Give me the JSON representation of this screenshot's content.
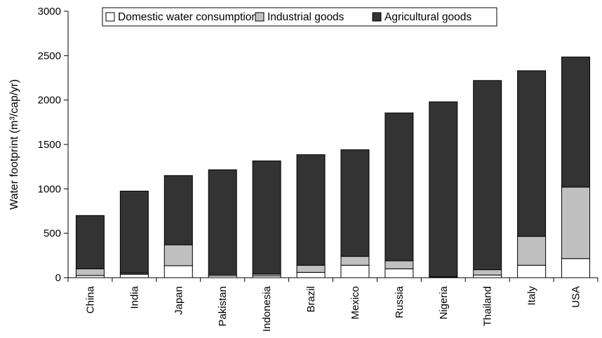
{
  "chart_data": {
    "type": "bar",
    "stacked": true,
    "categories": [
      "China",
      "India",
      "Japan",
      "Pakistan",
      "Indonesia",
      "Brazil",
      "Mexico",
      "Russia",
      "Nigeria",
      "Thailand",
      "Italy",
      "USA"
    ],
    "series": [
      {
        "name": "Domestic water consumption",
        "color": "#ffffff",
        "values": [
          25,
          38,
          135,
          20,
          20,
          60,
          140,
          100,
          5,
          30,
          140,
          215
        ]
      },
      {
        "name": "Industrial goods",
        "color": "#c0c0c0",
        "values": [
          75,
          12,
          235,
          15,
          20,
          80,
          100,
          90,
          5,
          60,
          325,
          805
        ]
      },
      {
        "name": "Agricultural goods",
        "color": "#333333",
        "values": [
          600,
          925,
          780,
          1180,
          1275,
          1245,
          1200,
          1665,
          1970,
          2130,
          1865,
          1465
        ]
      }
    ],
    "ylabel": "Water footprint (m³/cap/yr)",
    "ylim": [
      0,
      3000
    ],
    "yticks": [
      0,
      500,
      1000,
      1500,
      2000,
      2500,
      3000
    ],
    "grid": false,
    "legend_position": "top"
  }
}
